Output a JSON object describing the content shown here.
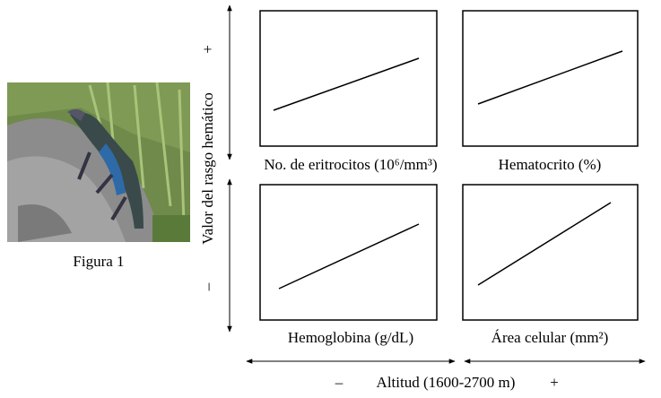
{
  "figure": {
    "caption": "Figura 1"
  },
  "y_axis": {
    "label": "Valor del rasgo hemático",
    "plus": "+",
    "minus": "–"
  },
  "x_axis": {
    "label": "Altitud (1600-2700 m)",
    "minus": "–",
    "plus": "+"
  },
  "panels": [
    {
      "label": "No. de eritrocitos (10⁶/mm³)"
    },
    {
      "label": "Hematocrito (%)"
    },
    {
      "label": "Hemoglobina (g/dL)"
    },
    {
      "label": "Área celular (mm²)"
    }
  ]
}
